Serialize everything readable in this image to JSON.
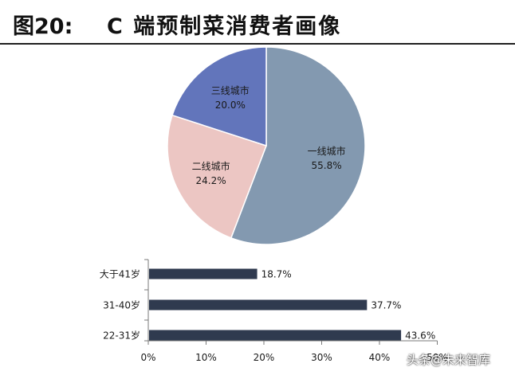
{
  "figure": {
    "label": "图20:",
    "title": "C 端预制菜消费者画像"
  },
  "chart_data": [
    {
      "type": "pie",
      "slices": [
        {
          "label": "一线城市",
          "value": 55.8,
          "display": "55.8%",
          "color": "#8399b0"
        },
        {
          "label": "二线城市",
          "value": 24.2,
          "display": "24.2%",
          "color": "#ecc6c3"
        },
        {
          "label": "三线城市",
          "value": 20.0,
          "display": "20.0%",
          "color": "#6275bb"
        }
      ]
    },
    {
      "type": "bar",
      "orientation": "horizontal",
      "categories": [
        "大于41岁",
        "31-40岁",
        "22-31岁"
      ],
      "values": [
        18.7,
        37.7,
        43.6
      ],
      "value_labels": [
        "18.7%",
        "37.7%",
        "43.6%"
      ],
      "bar_color": "#2f3a4f",
      "xlim": [
        0,
        50
      ],
      "xticks": [
        "0%",
        "10%",
        "20%",
        "30%",
        "40%",
        "50%"
      ]
    }
  ],
  "watermark": "头条@未来智库"
}
